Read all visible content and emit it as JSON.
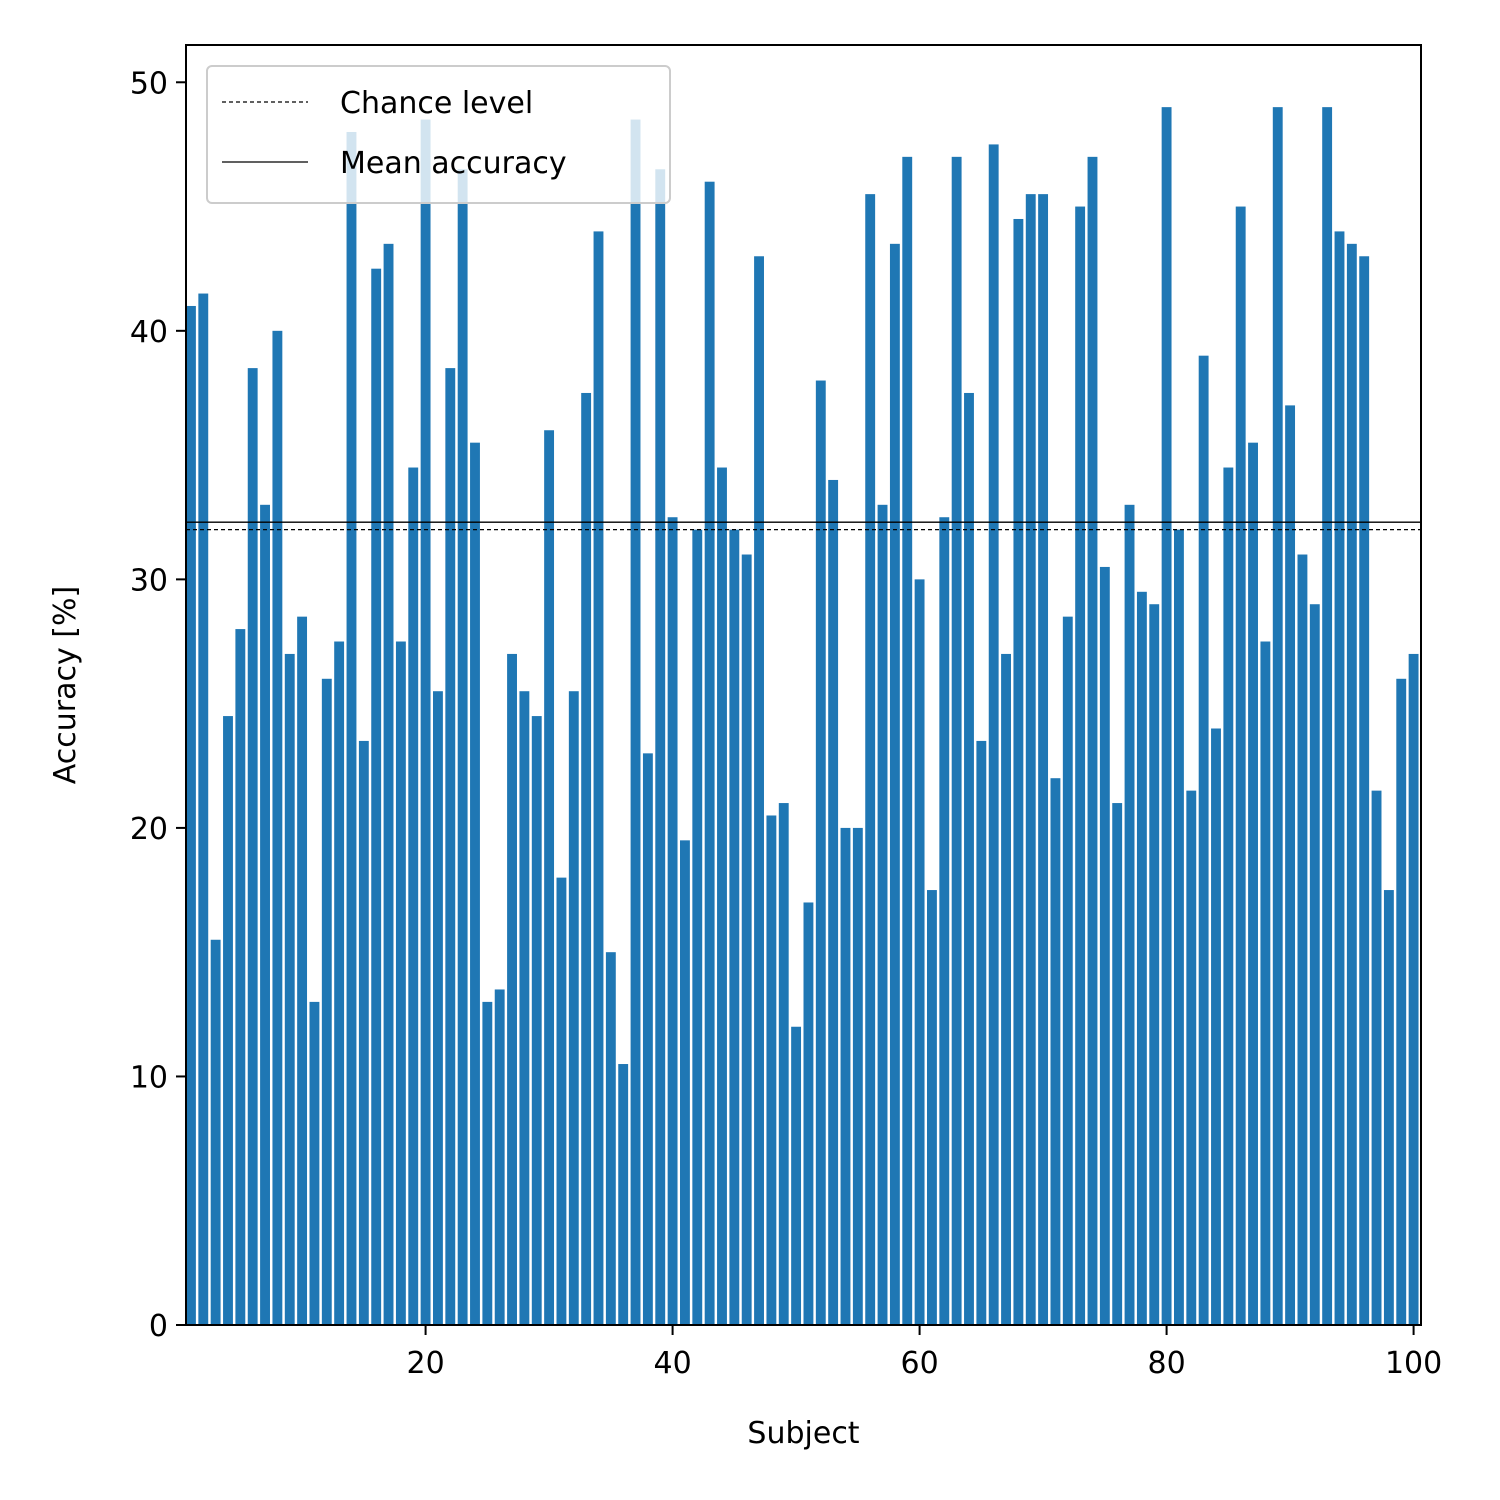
{
  "chart_data": {
    "type": "bar",
    "title": "",
    "xlabel": "Subject",
    "ylabel": "Accuracy [%]",
    "xlim": [
      0.6,
      100.6
    ],
    "ylim": [
      0,
      51.5
    ],
    "xticks": [
      20,
      40,
      60,
      80,
      100
    ],
    "yticks": [
      0,
      10,
      20,
      30,
      40,
      50
    ],
    "bar_color": "#1f77b4",
    "x": [
      1,
      2,
      3,
      4,
      5,
      6,
      7,
      8,
      9,
      10,
      11,
      12,
      13,
      14,
      15,
      16,
      17,
      18,
      19,
      20,
      21,
      22,
      23,
      24,
      25,
      26,
      27,
      28,
      29,
      30,
      31,
      32,
      33,
      34,
      35,
      36,
      37,
      38,
      39,
      40,
      41,
      42,
      43,
      44,
      45,
      46,
      47,
      48,
      49,
      50,
      51,
      52,
      53,
      54,
      55,
      56,
      57,
      58,
      59,
      60,
      61,
      62,
      63,
      64,
      65,
      66,
      67,
      68,
      69,
      70,
      71,
      72,
      73,
      74,
      75,
      76,
      77,
      78,
      79,
      80,
      81,
      82,
      83,
      84,
      85,
      86,
      87,
      88,
      89,
      90,
      91,
      92,
      93,
      94,
      95,
      96,
      97,
      98,
      99,
      100
    ],
    "values": [
      41.0,
      41.5,
      15.5,
      24.5,
      28.0,
      38.5,
      33.0,
      40.0,
      27.0,
      28.5,
      13.0,
      26.0,
      27.5,
      48.0,
      23.5,
      42.5,
      43.5,
      27.5,
      34.5,
      48.5,
      25.5,
      38.5,
      46.5,
      35.5,
      13.0,
      13.5,
      27.0,
      25.5,
      24.5,
      36.0,
      18.0,
      25.5,
      37.5,
      44.0,
      15.0,
      10.5,
      48.5,
      23.0,
      46.5,
      32.5,
      19.5,
      32.0,
      46.0,
      34.5,
      32.0,
      31.0,
      43.0,
      20.5,
      21.0,
      12.0,
      17.0,
      38.0,
      34.0,
      20.0,
      20.0,
      45.5,
      33.0,
      43.5,
      47.0,
      30.0,
      17.5,
      32.5,
      47.0,
      37.5,
      23.5,
      47.5,
      27.0,
      44.5,
      45.5,
      45.5,
      22.0,
      28.5,
      45.0,
      47.0,
      30.5,
      21.0,
      33.0,
      29.5,
      29.0,
      49.0,
      32.0,
      21.5,
      39.0,
      24.0,
      34.5,
      45.0,
      35.5,
      27.5,
      49.0,
      37.0,
      31.0,
      29.0,
      49.0,
      44.0,
      43.5,
      43.0,
      21.5,
      17.5,
      26.0,
      27.0
    ],
    "reference_lines": [
      {
        "name": "Chance level",
        "value": 32.0,
        "style": "dashed",
        "color": "#000000"
      },
      {
        "name": "Mean accuracy",
        "value": 32.3,
        "style": "solid",
        "color": "#000000"
      }
    ],
    "legend": {
      "position": "top-left",
      "entries": [
        "Chance level",
        "Mean accuracy"
      ]
    },
    "grid": false
  }
}
